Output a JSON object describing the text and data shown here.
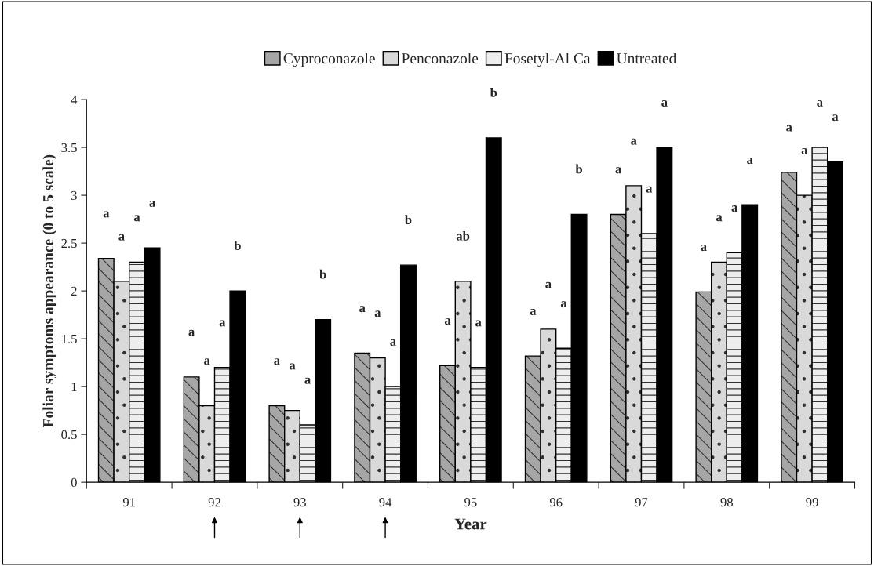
{
  "chart_data": {
    "type": "bar",
    "xlabel": "Year",
    "ylabel": "Foliar symptoms appearance (0 to 5 scale)",
    "categories": [
      "91",
      "92",
      "93",
      "94",
      "95",
      "96",
      "97",
      "98",
      "99"
    ],
    "series": [
      {
        "name": "Cyproconazole",
        "color": "#a6a6a6",
        "values": [
          2.34,
          1.1,
          0.8,
          1.35,
          1.22,
          1.32,
          2.8,
          1.99,
          3.24
        ],
        "value_labels": [
          "a",
          "a",
          "a",
          "a",
          "a",
          "a",
          "a",
          "a",
          "a"
        ]
      },
      {
        "name": "Penconazole",
        "color": "#d9d9d9",
        "values": [
          2.1,
          0.8,
          0.75,
          1.3,
          2.1,
          1.6,
          3.1,
          2.3,
          3.0
        ],
        "value_labels": [
          "a",
          "a",
          "a",
          "a",
          "ab",
          "a",
          "a",
          "a",
          "a"
        ]
      },
      {
        "name": "Fosetyl-Al Ca",
        "color": "#eeeeee",
        "values": [
          2.3,
          1.2,
          0.6,
          1.0,
          1.2,
          1.4,
          2.6,
          2.4,
          3.5
        ],
        "value_labels": [
          "a",
          "a",
          "a",
          "a",
          "a",
          "a",
          "a",
          "a",
          "a"
        ]
      },
      {
        "name": "Untreated",
        "color": "#000000",
        "values": [
          2.45,
          2.0,
          1.7,
          2.27,
          3.6,
          2.8,
          3.5,
          2.9,
          3.35
        ],
        "value_labels": [
          "a",
          "b",
          "b",
          "b",
          "b",
          "b",
          "a",
          "a",
          "a"
        ]
      }
    ],
    "ylim": [
      0,
      4
    ],
    "yticks": [
      0,
      0.5,
      1,
      1.5,
      2,
      2.5,
      3,
      3.5,
      4
    ],
    "grid": false,
    "legend": "top"
  }
}
